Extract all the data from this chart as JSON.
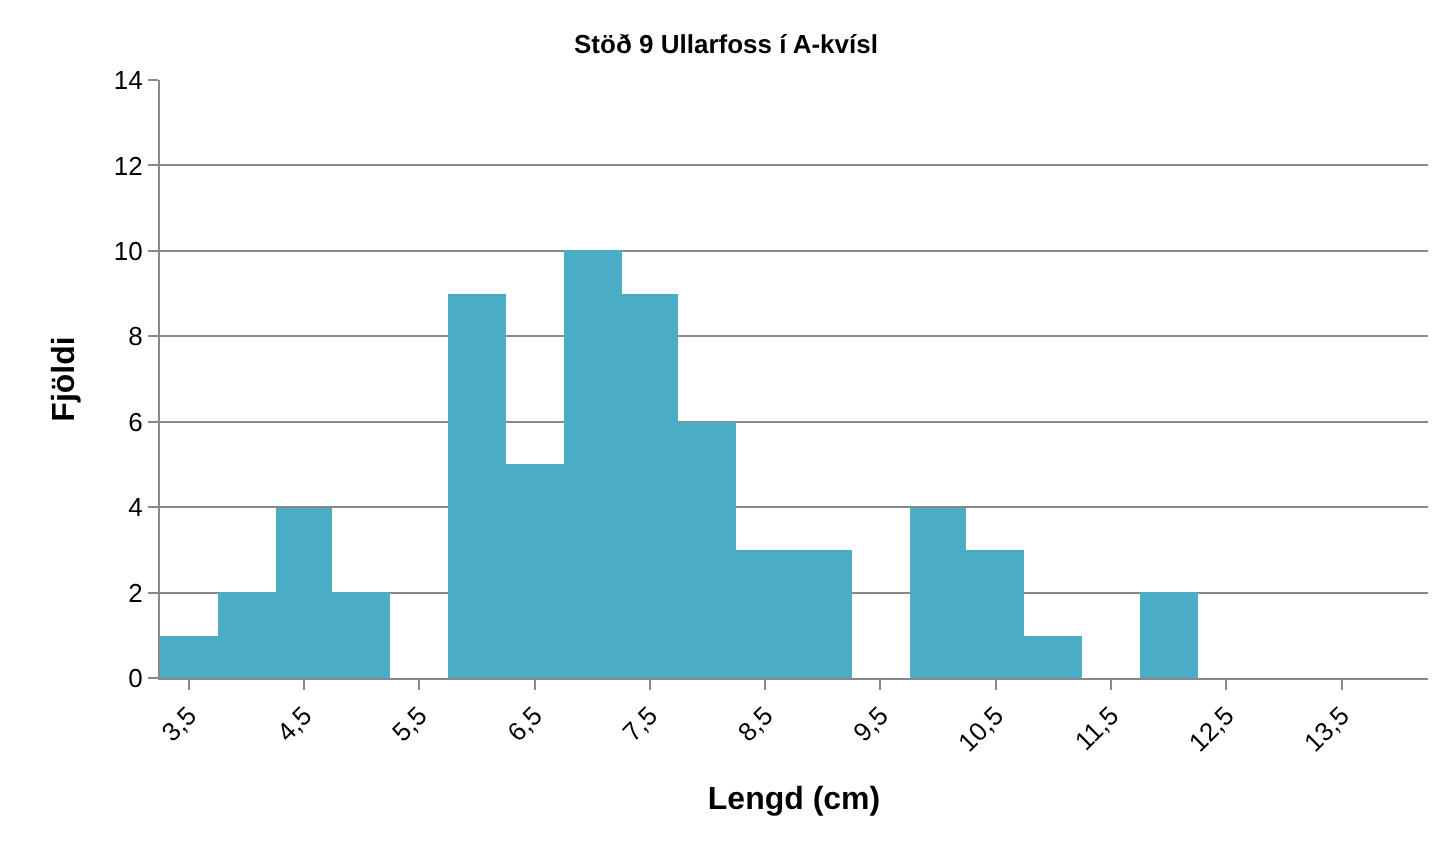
{
  "chart_data": {
    "type": "bar",
    "title": "Stöð 9 Ullarfoss í A-kvísl",
    "xlabel": "Lengd (cm)",
    "ylabel": "Fjöldi",
    "categories": [
      "3,5",
      null,
      "4,5",
      null,
      "5,5",
      null,
      "6,5",
      null,
      "7,5",
      null,
      "8,5",
      null,
      "9,5",
      null,
      "10,5",
      null,
      "11,5",
      null,
      "12,5",
      null,
      "13,5",
      null
    ],
    "values": [
      1,
      2,
      4,
      2,
      0,
      9,
      5,
      10,
      9,
      6,
      3,
      3,
      0,
      4,
      3,
      1,
      0,
      2,
      0,
      0,
      0,
      0
    ],
    "color": "#4bacc6",
    "ylim": [
      0,
      14
    ],
    "yticks": [
      0,
      2,
      4,
      6,
      8,
      10,
      12,
      14
    ],
    "grid": "y",
    "legend": false
  }
}
